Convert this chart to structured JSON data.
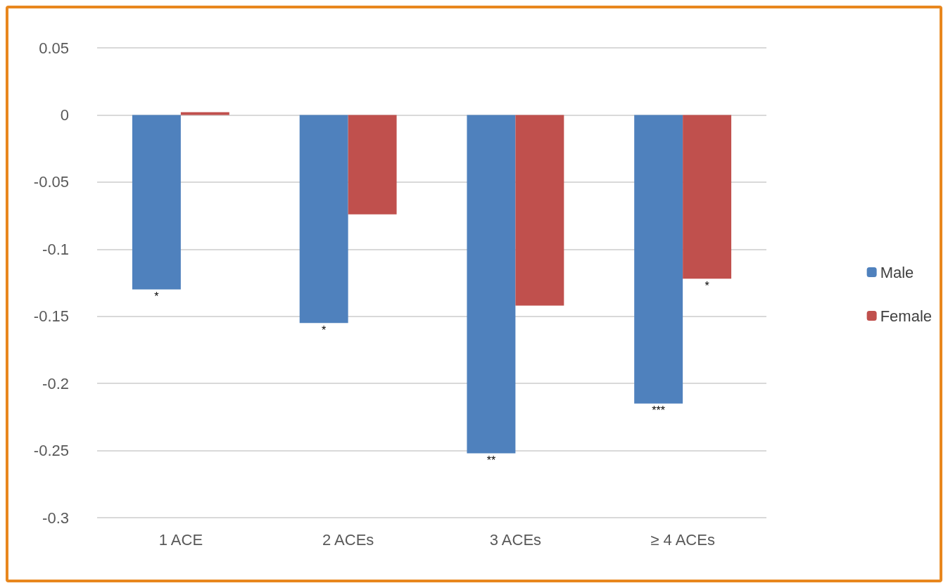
{
  "chart_data": {
    "type": "bar",
    "categories": [
      "1 ACE",
      "2 ACEs",
      "3 ACEs",
      "≥ 4 ACEs"
    ],
    "series": [
      {
        "name": "Male",
        "color": "#4f81bd",
        "values": [
          -0.13,
          -0.155,
          -0.252,
          -0.215
        ]
      },
      {
        "name": "Female",
        "color": "#c0504d",
        "values": [
          0.002,
          -0.074,
          -0.142,
          -0.122
        ]
      }
    ],
    "ylim": [
      -0.3,
      0.05
    ],
    "yticks": [
      {
        "value": -0.3,
        "label": "-0.3"
      },
      {
        "value": -0.25,
        "label": "-0.25"
      },
      {
        "value": -0.2,
        "label": "-0.2"
      },
      {
        "value": -0.15,
        "label": "-0.15"
      },
      {
        "value": -0.1,
        "label": "-0.1"
      },
      {
        "value": -0.05,
        "label": "-0.05"
      },
      {
        "value": 0,
        "label": "0"
      },
      {
        "value": 0.05,
        "label": "0.05"
      }
    ],
    "grid": "y",
    "legend": "right",
    "annotations": [
      {
        "text": "*",
        "x": "1 ACE",
        "y": -0.13
      },
      {
        "text": "*",
        "x": "2 ACEs",
        "y": -0.155
      },
      {
        "text": "**",
        "x": "3 ACEs",
        "y": -0.252
      },
      {
        "text": "***",
        "x": "≥ 4 ACEs",
        "y": -0.215
      },
      {
        "text": "*",
        "x": "≥ 4 ACEs",
        "y": -0.122
      }
    ]
  }
}
